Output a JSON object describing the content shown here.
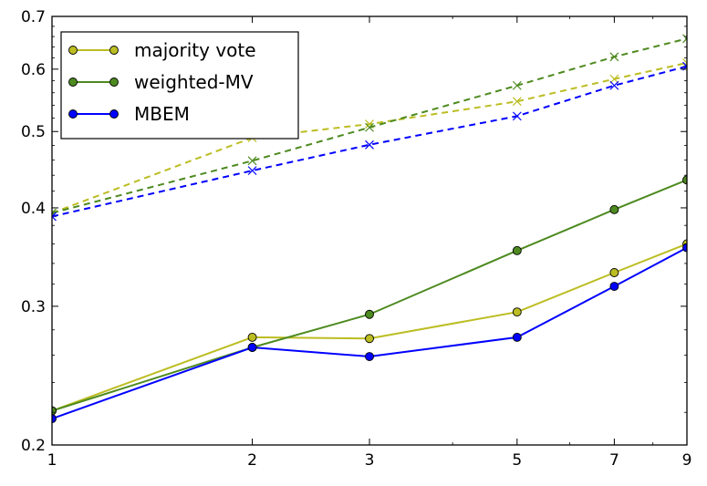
{
  "chart_data": {
    "type": "line",
    "x_scale": "log",
    "y_scale": "log",
    "xlim": [
      1,
      9
    ],
    "ylim": [
      0.2,
      0.7
    ],
    "x_ticks": [
      1,
      2,
      3,
      5,
      7,
      9
    ],
    "x_tick_labels": [
      "1",
      "2",
      "3",
      "5",
      "7",
      "9"
    ],
    "y_ticks": [
      0.2,
      0.3,
      0.4,
      0.5,
      0.6,
      0.7
    ],
    "y_tick_labels": [
      "0.2",
      "0.3",
      "0.4",
      "0.5",
      "0.6",
      "0.7"
    ],
    "grid": false,
    "legend": "upper left",
    "x": [
      1,
      2,
      3,
      5,
      7,
      9
    ],
    "series": [
      {
        "name": "majority vote",
        "color": "#bcbd22",
        "style": "solid",
        "marker": "circle",
        "values": [
          0.221,
          0.274,
          0.273,
          0.295,
          0.331,
          0.36
        ]
      },
      {
        "name": "weighted-MV",
        "color": "#4d8a1f",
        "style": "solid",
        "marker": "circle",
        "values": [
          0.221,
          0.266,
          0.293,
          0.353,
          0.398,
          0.434
        ]
      },
      {
        "name": "MBEM",
        "color": "#0000ff",
        "style": "solid",
        "marker": "circle",
        "values": [
          0.216,
          0.266,
          0.259,
          0.274,
          0.318,
          0.356
        ]
      },
      {
        "color": "#bcbd22",
        "style": "dashed",
        "marker": "x",
        "values": [
          0.394,
          0.491,
          0.511,
          0.546,
          0.583,
          0.611
        ]
      },
      {
        "color": "#4d8a1f",
        "style": "dashed",
        "marker": "x",
        "values": [
          0.394,
          0.459,
          0.506,
          0.572,
          0.622,
          0.656
        ]
      },
      {
        "color": "#0000ff",
        "style": "dashed",
        "marker": "x",
        "values": [
          0.39,
          0.446,
          0.481,
          0.523,
          0.572,
          0.605
        ]
      }
    ]
  }
}
